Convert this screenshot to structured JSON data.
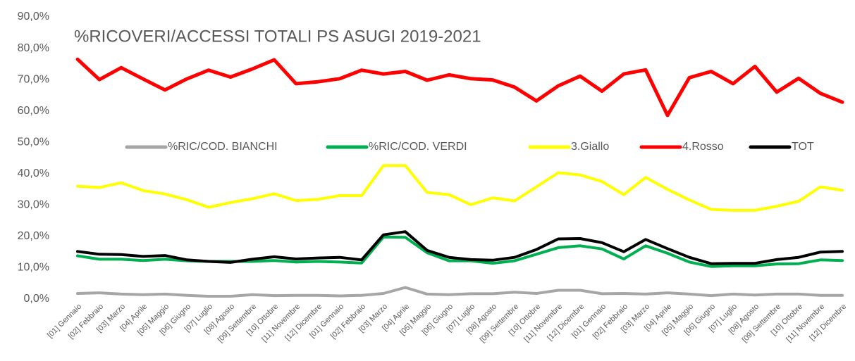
{
  "chart_data": {
    "type": "line",
    "title": "%RICOVERI/ACCESSI TOTALI PS ASUGI 2019-2021",
    "categories": [
      "[01] Gennaio",
      "[02] Febbraio",
      "[03] Marzo",
      "[04] Aprile",
      "[05] Maggio",
      "[06] Giugno",
      "[07] Luglio",
      "[08] Agosto",
      "[09] Settembre",
      "[10] Ottobre",
      "[11] Novembre",
      "[12] Dicembre",
      "[01] Gennaio",
      "[02] Febbraio",
      "[03] Marzo",
      "[04] Aprile",
      "[05] Maggio",
      "[06] Giugno",
      "[07] Luglio",
      "[08] Agosto",
      "[09] Settembre",
      "[10] Ottobre",
      "[11] Novembre",
      "[12] Dicembre",
      "[01] Gennaio",
      "[02] Febbraio",
      "[03] Marzo",
      "[04] Aprile",
      "[05] Maggio",
      "[06] Giugno",
      "[07] Luglio",
      "[08] Agosto",
      "[09] Settembre",
      "[10] Ottobre",
      "[11] Novembre",
      "[12] Dicembre"
    ],
    "series": [
      {
        "name": "%RIC/COD. BIANCHI",
        "color": "#a6a6a6",
        "values": [
          1.8,
          2,
          1.6,
          1.4,
          1.6,
          1.2,
          0.9,
          0.9,
          1.4,
          1.1,
          1.2,
          1.2,
          1,
          1.2,
          1.8,
          3.7,
          1.6,
          1.4,
          1.7,
          1.7,
          2.2,
          1.8,
          2.8,
          2.8,
          1.7,
          1.8,
          1.6,
          2,
          1.6,
          1.1,
          1.6,
          1.3,
          1.6,
          1.6,
          1.2,
          1.2
        ]
      },
      {
        "name": "%RIC/COD. VERDI",
        "color": "#00b050",
        "values": [
          13.8,
          12.7,
          12.7,
          12.3,
          12.7,
          12.2,
          12,
          12,
          12,
          12.3,
          11.8,
          12,
          11.8,
          11.5,
          19.8,
          19.7,
          14.8,
          12.2,
          12.2,
          11.4,
          12.2,
          14.3,
          16.4,
          17,
          16,
          12.8,
          17,
          14.6,
          11.8,
          10.4,
          10.6,
          10.6,
          11.2,
          11.3,
          12.5,
          12.3
        ]
      },
      {
        "name": "3.Giallo",
        "color": "#ffff00",
        "values": [
          36,
          35.6,
          37.1,
          34.6,
          33.5,
          31.7,
          29.3,
          30.8,
          32,
          33.6,
          31.4,
          31.8,
          33,
          33,
          42.6,
          42.6,
          34,
          33.3,
          30.1,
          32.3,
          31.3,
          35.8,
          40.3,
          39.6,
          37.5,
          33.3,
          38.8,
          35,
          31.6,
          28.6,
          28.3,
          28.3,
          29.6,
          31.2,
          35.8,
          34.7
        ]
      },
      {
        "name": "4.Rosso",
        "color": "#ff0000",
        "values": [
          76.5,
          70,
          73.8,
          70.2,
          66.7,
          70.2,
          73,
          70.8,
          73.4,
          76.3,
          68.7,
          69.3,
          70.3,
          73,
          71.8,
          72.6,
          69.8,
          71.5,
          70.3,
          69.9,
          67.6,
          63.2,
          68,
          71.1,
          66.3,
          71.8,
          73.1,
          58.6,
          70.6,
          72.6,
          68.7,
          74.2,
          66,
          70.4,
          65.6,
          62.8
        ]
      },
      {
        "name": "TOT",
        "color": "#000000",
        "values": [
          15.2,
          14.3,
          14.2,
          13.6,
          13.9,
          12.5,
          12,
          11.7,
          12.7,
          13.5,
          12.8,
          13.1,
          13.3,
          12.5,
          20.5,
          21.5,
          15.5,
          13.3,
          12.6,
          12.4,
          13.3,
          15.8,
          19.2,
          19.3,
          18,
          15.1,
          19,
          16.1,
          13.3,
          11.3,
          11.4,
          11.4,
          12.6,
          13.3,
          15,
          15.2
        ]
      }
    ],
    "ylim": [
      0,
      90
    ],
    "yticks": [
      {
        "value": 0,
        "label": "0,0%"
      },
      {
        "value": 10,
        "label": "10,0%"
      },
      {
        "value": 20,
        "label": "20,0%"
      },
      {
        "value": 30,
        "label": "30,0%"
      },
      {
        "value": 40,
        "label": "40,0%"
      },
      {
        "value": 50,
        "label": "50,0%"
      },
      {
        "value": 60,
        "label": "60,0%"
      },
      {
        "value": 70,
        "label": "70,0%"
      },
      {
        "value": 80,
        "label": "80,0%"
      },
      {
        "value": 90,
        "label": "90,0%"
      }
    ],
    "grid": false
  }
}
